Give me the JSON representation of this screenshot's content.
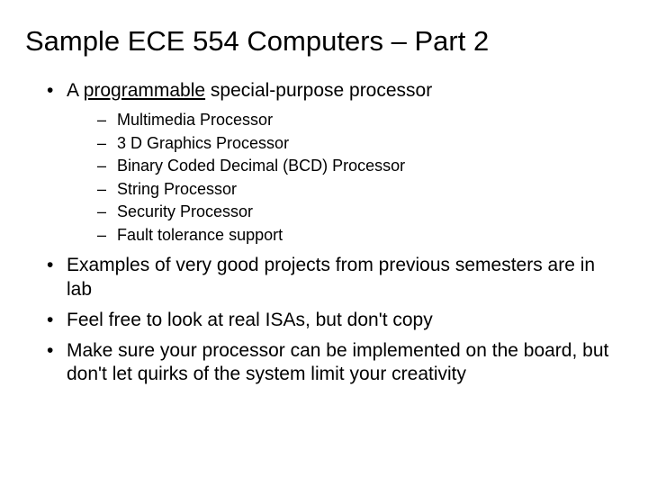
{
  "title": "Sample ECE 554 Computers – Part 2",
  "bullets": {
    "b0_pre": "A ",
    "b0_underlined": "programmable",
    "b0_post": " special-purpose processor",
    "sub": [
      "Multimedia Processor",
      "3 D Graphics Processor",
      "Binary Coded Decimal (BCD) Processor",
      "String Processor",
      "Security Processor",
      "Fault tolerance support"
    ],
    "b1": "Examples of very good projects from previous semesters are in lab",
    "b2": "Feel free to look at real ISAs, but don't copy",
    "b3": "Make sure your processor can be implemented on the board, but don't let quirks of the system limit your creativity"
  }
}
